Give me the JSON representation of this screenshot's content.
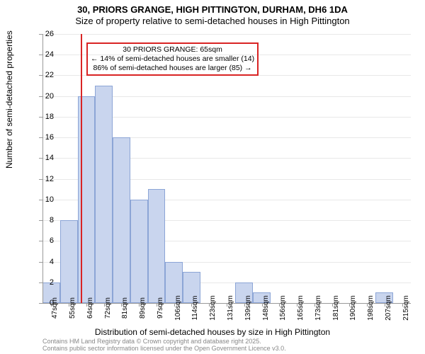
{
  "title_main": "30, PRIORS GRANGE, HIGH PITTINGTON, DURHAM, DH6 1DA",
  "title_sub": "Size of property relative to semi-detached houses in High Pittington",
  "y_label": "Number of semi-detached properties",
  "x_label": "Distribution of semi-detached houses by size in High Pittington",
  "footer_line1": "Contains HM Land Registry data © Crown copyright and database right 2025.",
  "footer_line2": "Contains public sector information licensed under the Open Government Licence v3.0.",
  "chart": {
    "type": "histogram",
    "ylim": [
      0,
      26
    ],
    "ytick_step": 2,
    "x_categories": [
      "47sqm",
      "55sqm",
      "64sqm",
      "72sqm",
      "81sqm",
      "89sqm",
      "97sqm",
      "106sqm",
      "114sqm",
      "123sqm",
      "131sqm",
      "139sqm",
      "148sqm",
      "156sqm",
      "165sqm",
      "173sqm",
      "181sqm",
      "190sqm",
      "198sqm",
      "207sqm",
      "215sqm"
    ],
    "bar_values": [
      2,
      8,
      20,
      21,
      16,
      10,
      11,
      4,
      3,
      0,
      0,
      2,
      1,
      0,
      0,
      0,
      0,
      0,
      0,
      1,
      0
    ],
    "bar_fill_color": "#c9d5ee",
    "bar_border_color": "#8ca5d6",
    "grid_color": "#e8e8e8",
    "axis_color": "#999999",
    "background_color": "#ffffff",
    "reference_line": {
      "x_value": 65,
      "x_min": 47,
      "x_max": 220,
      "color": "#d92424"
    },
    "annotation": {
      "line1": "30 PRIORS GRANGE: 65sqm",
      "line2": "← 14% of semi-detached houses are smaller (14)",
      "line3": "86% of semi-detached houses are larger (85) →",
      "border_color": "#d92424"
    },
    "title_fontsize": 13,
    "label_fontsize": 12,
    "tick_fontsize": 11
  }
}
